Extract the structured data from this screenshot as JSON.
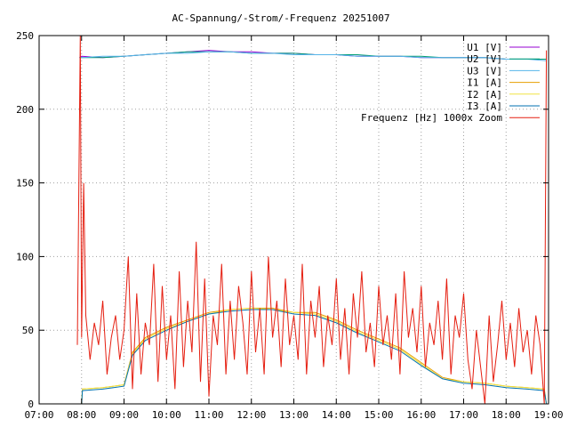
{
  "chart_data": {
    "type": "line",
    "title": "AC-Spannung/-Strom/-Frequenz 20251007",
    "xlabel": "",
    "ylabel": "",
    "x_ticks": [
      "07:00",
      "08:00",
      "09:00",
      "10:00",
      "11:00",
      "12:00",
      "13:00",
      "14:00",
      "15:00",
      "16:00",
      "17:00",
      "18:00",
      "19:00"
    ],
    "xlim": [
      7,
      19
    ],
    "ylim": [
      0,
      250
    ],
    "y_ticks": [
      0,
      50,
      100,
      150,
      200,
      250
    ],
    "grid": true,
    "legend_position": "top-right",
    "series": [
      {
        "name": "U1 [V]",
        "color": "#9400d3",
        "x": [
          7.95,
          8.0,
          8.5,
          9.0,
          9.5,
          10.0,
          10.5,
          11.0,
          11.5,
          12.0,
          12.5,
          13.0,
          13.5,
          14.0,
          14.5,
          15.0,
          15.5,
          16.0,
          16.5,
          17.0,
          17.5,
          18.0,
          18.5,
          18.95
        ],
        "y": [
          235,
          236,
          235,
          236,
          237,
          238,
          239,
          240,
          239,
          239,
          238,
          238,
          237,
          237,
          236,
          236,
          236,
          235,
          235,
          235,
          235,
          234,
          234,
          234
        ]
      },
      {
        "name": "U2 [V]",
        "color": "#009e73",
        "x": [
          7.95,
          8.0,
          8.5,
          9.0,
          9.5,
          10.0,
          10.5,
          11.0,
          11.5,
          12.0,
          12.5,
          13.0,
          13.5,
          14.0,
          14.5,
          15.0,
          15.5,
          16.0,
          16.5,
          17.0,
          17.5,
          18.0,
          18.5,
          18.95
        ],
        "y": [
          235,
          235,
          235,
          236,
          237,
          238,
          239,
          239,
          239,
          238,
          238,
          238,
          237,
          237,
          237,
          236,
          236,
          236,
          235,
          235,
          235,
          234,
          234,
          234
        ]
      },
      {
        "name": "U3 [V]",
        "color": "#56b4e9",
        "x": [
          7.95,
          8.0,
          8.5,
          9.0,
          9.5,
          10.0,
          10.5,
          11.0,
          11.5,
          12.0,
          12.5,
          13.0,
          13.5,
          14.0,
          14.5,
          15.0,
          15.5,
          16.0,
          16.5,
          17.0,
          17.5,
          18.0,
          18.5,
          18.95
        ],
        "y": [
          235,
          235,
          236,
          236,
          237,
          238,
          238,
          239,
          239,
          238,
          238,
          237,
          237,
          237,
          236,
          236,
          236,
          235,
          235,
          235,
          235,
          234,
          234,
          233
        ]
      },
      {
        "name": "I1 [A]",
        "color": "#e69f00",
        "x": [
          8.0,
          8.02,
          8.5,
          9.0,
          9.2,
          9.5,
          10.0,
          10.5,
          11.0,
          11.5,
          12.0,
          12.5,
          13.0,
          13.5,
          14.0,
          14.5,
          15.0,
          15.5,
          16.0,
          16.5,
          17.0,
          17.5,
          18.0,
          18.5,
          18.9,
          18.95
        ],
        "y": [
          0,
          10,
          11,
          13,
          35,
          45,
          52,
          57,
          62,
          64,
          65,
          65,
          62,
          62,
          57,
          50,
          44,
          38,
          28,
          18,
          15,
          14,
          12,
          11,
          10,
          0
        ]
      },
      {
        "name": "I2 [A]",
        "color": "#f0e442",
        "x": [
          8.0,
          8.02,
          8.5,
          9.0,
          9.2,
          9.5,
          10.0,
          10.5,
          11.0,
          11.5,
          12.0,
          12.5,
          13.0,
          13.5,
          14.0,
          14.5,
          15.0,
          15.5,
          16.0,
          16.5,
          17.0,
          17.5,
          18.0,
          18.5,
          18.9,
          18.95
        ],
        "y": [
          0,
          10,
          11,
          13,
          34,
          44,
          51,
          56,
          61,
          64,
          65,
          64,
          62,
          61,
          56,
          49,
          43,
          37,
          27,
          17,
          15,
          14,
          12,
          11,
          10,
          0
        ]
      },
      {
        "name": "I3 [A]",
        "color": "#0072b2",
        "x": [
          8.0,
          8.02,
          8.5,
          9.0,
          9.2,
          9.5,
          10.0,
          10.5,
          11.0,
          11.5,
          12.0,
          12.5,
          13.0,
          13.5,
          14.0,
          14.5,
          15.0,
          15.5,
          16.0,
          16.5,
          17.0,
          17.5,
          18.0,
          18.5,
          18.9,
          18.95
        ],
        "y": [
          0,
          9,
          10,
          12,
          33,
          43,
          50,
          56,
          61,
          63,
          64,
          64,
          61,
          60,
          55,
          48,
          42,
          36,
          26,
          17,
          14,
          13,
          11,
          10,
          9,
          0
        ]
      },
      {
        "name": "Frequenz [Hz] 1000x Zoom",
        "color": "#e51e10",
        "x": [
          7.9,
          7.97,
          8.0,
          8.05,
          8.1,
          8.2,
          8.3,
          8.4,
          8.5,
          8.6,
          8.7,
          8.8,
          8.9,
          9.0,
          9.1,
          9.2,
          9.3,
          9.4,
          9.5,
          9.6,
          9.7,
          9.8,
          9.9,
          10.0,
          10.1,
          10.2,
          10.3,
          10.4,
          10.5,
          10.6,
          10.7,
          10.8,
          10.9,
          11.0,
          11.1,
          11.2,
          11.3,
          11.4,
          11.5,
          11.6,
          11.7,
          11.8,
          11.9,
          12.0,
          12.1,
          12.2,
          12.3,
          12.4,
          12.5,
          12.6,
          12.7,
          12.8,
          12.9,
          13.0,
          13.1,
          13.2,
          13.3,
          13.4,
          13.5,
          13.6,
          13.7,
          13.8,
          13.9,
          14.0,
          14.1,
          14.2,
          14.3,
          14.4,
          14.5,
          14.6,
          14.7,
          14.8,
          14.9,
          15.0,
          15.1,
          15.2,
          15.3,
          15.4,
          15.5,
          15.6,
          15.7,
          15.8,
          15.9,
          16.0,
          16.1,
          16.2,
          16.3,
          16.4,
          16.5,
          16.6,
          16.7,
          16.8,
          16.9,
          17.0,
          17.1,
          17.2,
          17.3,
          17.4,
          17.5,
          17.6,
          17.7,
          17.8,
          17.9,
          18.0,
          18.1,
          18.2,
          18.3,
          18.4,
          18.5,
          18.6,
          18.7,
          18.8,
          18.9,
          18.95
        ],
        "y": [
          40,
          250,
          45,
          150,
          60,
          30,
          55,
          40,
          70,
          20,
          45,
          60,
          30,
          50,
          100,
          10,
          75,
          20,
          55,
          40,
          95,
          15,
          80,
          30,
          60,
          10,
          90,
          25,
          70,
          35,
          110,
          15,
          85,
          5,
          60,
          40,
          95,
          20,
          70,
          30,
          80,
          55,
          20,
          90,
          35,
          65,
          20,
          100,
          45,
          70,
          25,
          85,
          40,
          60,
          30,
          95,
          20,
          70,
          45,
          80,
          25,
          60,
          40,
          85,
          30,
          65,
          20,
          75,
          45,
          90,
          35,
          55,
          25,
          80,
          40,
          60,
          30,
          75,
          20,
          90,
          45,
          65,
          35,
          80,
          25,
          55,
          40,
          70,
          30,
          85,
          20,
          60,
          45,
          75,
          30,
          10,
          50,
          25,
          0,
          60,
          15,
          40,
          70,
          30,
          55,
          25,
          65,
          35,
          50,
          20,
          60,
          40,
          0,
          240
        ]
      }
    ]
  }
}
